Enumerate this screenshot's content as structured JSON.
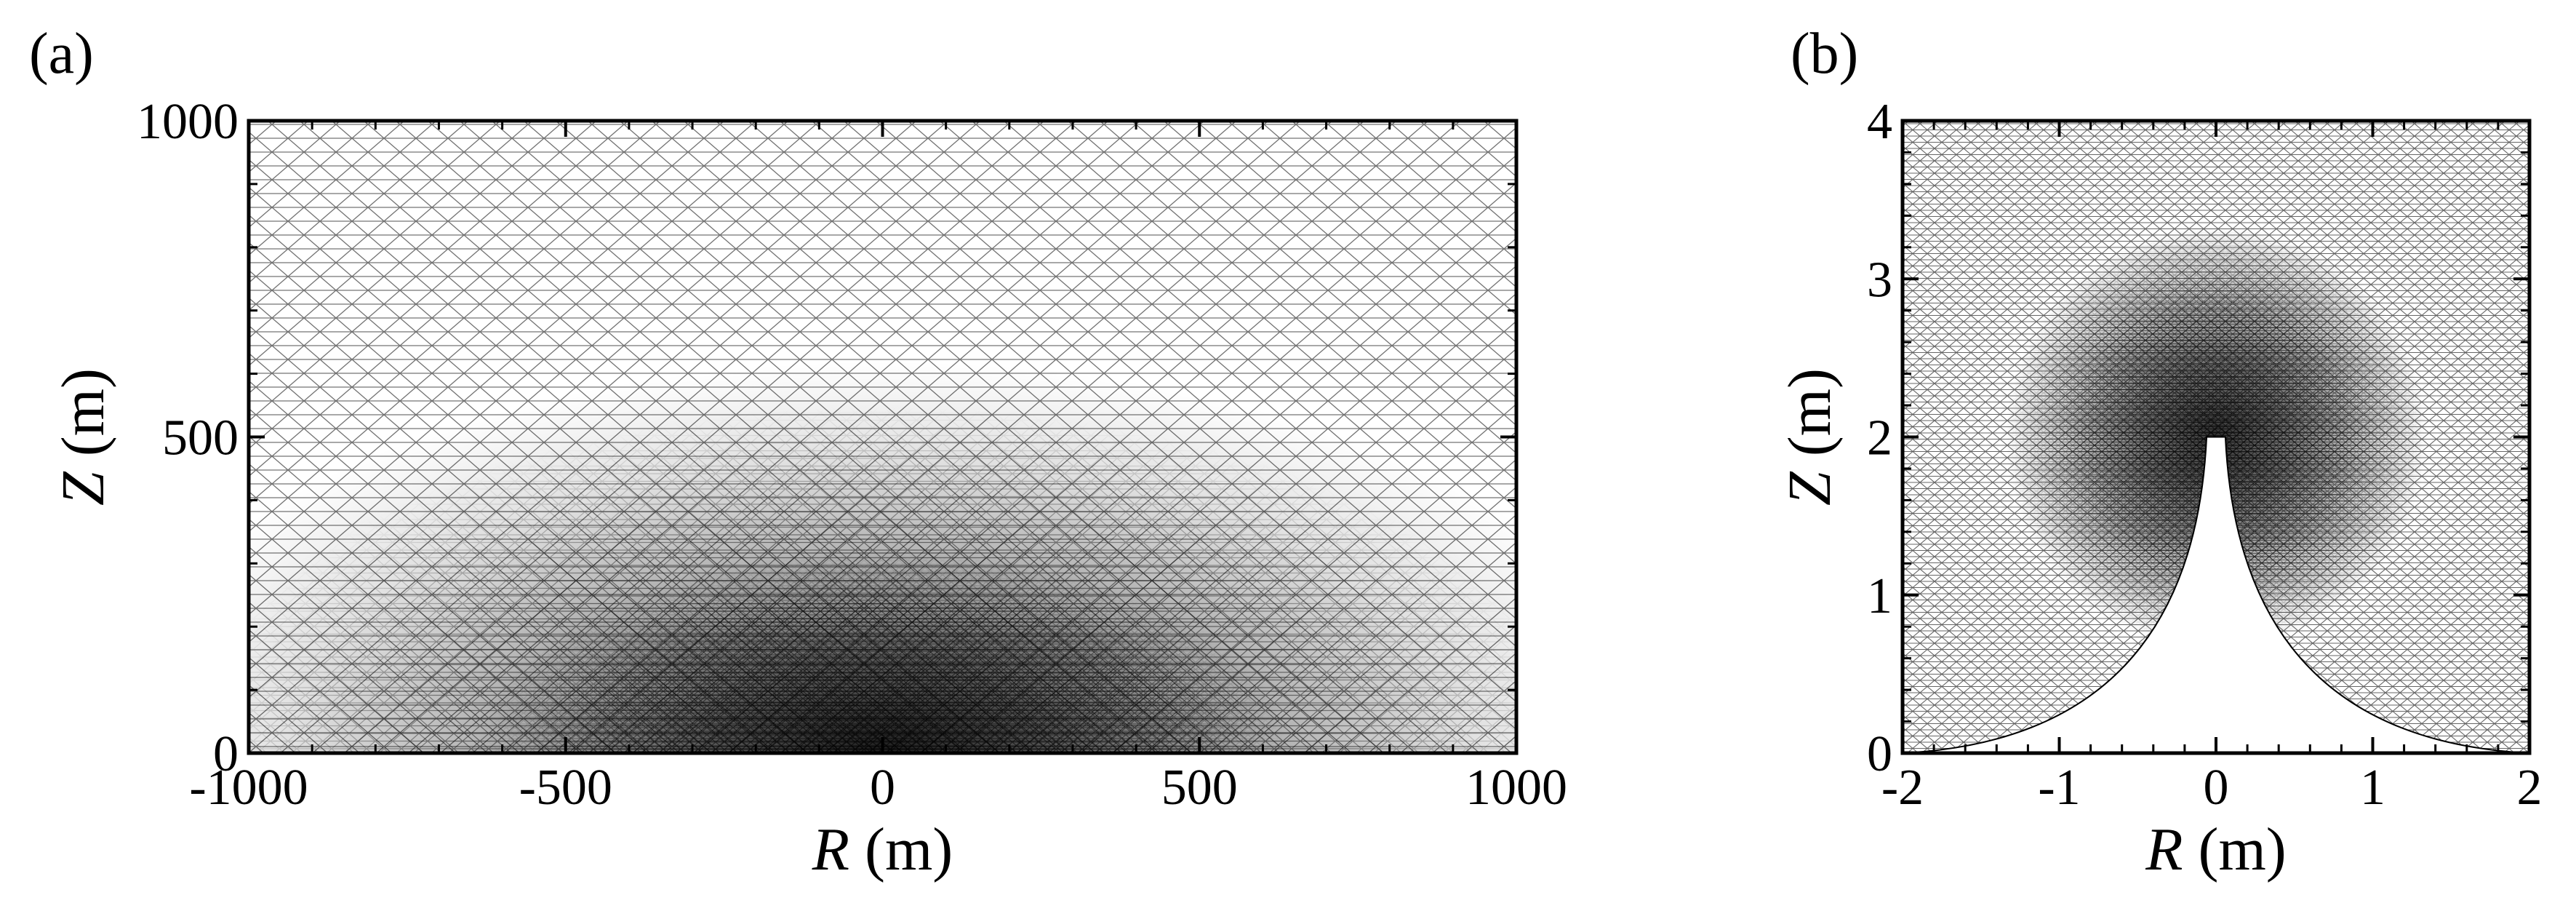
{
  "figure": {
    "panels": [
      {
        "id": "a",
        "tag": "(a)",
        "xlabel_var": "R",
        "xlabel_unit": " (m)",
        "ylabel_var": "Z",
        "ylabel_unit": " (m)"
      },
      {
        "id": "b",
        "tag": "(b)",
        "xlabel_var": "R",
        "xlabel_unit": " (m)",
        "ylabel_var": "Z",
        "ylabel_unit": " (m)"
      }
    ]
  },
  "chart_data": [
    {
      "type": "mesh",
      "xlim": [
        -1000,
        1000
      ],
      "ylim": [
        0,
        1000
      ],
      "xticks": [
        -1000,
        -500,
        0,
        500,
        1000
      ],
      "xtick_labels": [
        "-1000",
        "-500",
        "0",
        "500",
        "1000"
      ],
      "yticks": [
        0,
        500,
        1000
      ],
      "ytick_labels": [
        "0",
        "500",
        "1000"
      ],
      "refinement_center": [
        0,
        0
      ],
      "mesh": "triangular",
      "grid": false
    },
    {
      "type": "mesh",
      "xlim": [
        -2,
        2
      ],
      "ylim": [
        0,
        4
      ],
      "xticks": [
        -2,
        -1,
        0,
        1,
        2
      ],
      "xtick_labels": [
        "-2",
        "-1",
        "0",
        "1",
        "2"
      ],
      "yticks": [
        0,
        1,
        2,
        3,
        4
      ],
      "ytick_labels": [
        "0",
        "1",
        "2",
        "3",
        "4"
      ],
      "refinement_center": [
        0,
        2
      ],
      "cutout_tip_height": 2,
      "cutout_tip_halfwidth": 0.06,
      "mesh": "triangular",
      "grid": false
    }
  ]
}
